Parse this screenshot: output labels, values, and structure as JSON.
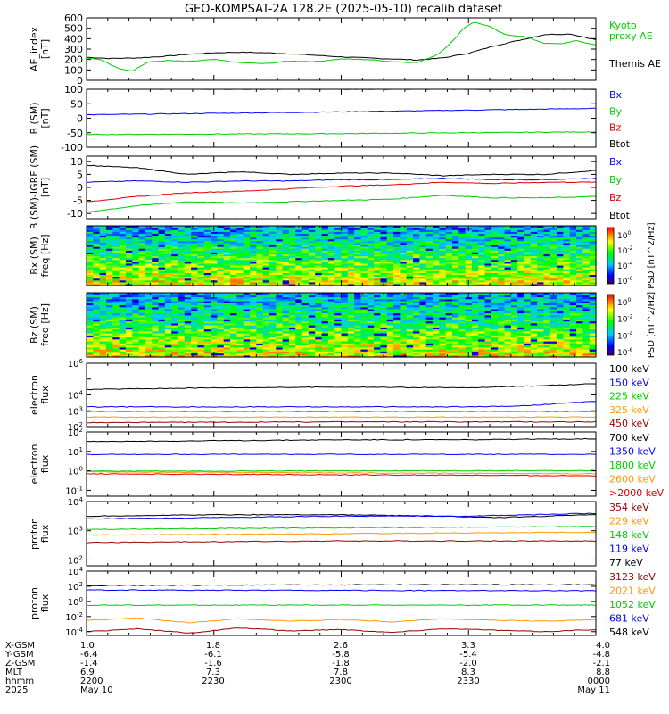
{
  "title": "GEO-KOMPSAT-2A 128.2E (2025-05-10) recalib dataset",
  "colors": {
    "black": "#000000",
    "blue": "#0000ff",
    "green": "#00cc00",
    "red": "#dd0000",
    "orange": "#ff9900",
    "darkred": "#990000",
    "lime": "#00dd00"
  },
  "x_axis": {
    "rows": [
      {
        "label": "X-GSM",
        "values": [
          "1.0",
          "1.8",
          "2.6",
          "3.3",
          "4.0"
        ]
      },
      {
        "label": "Y-GSM",
        "values": [
          "-6.4",
          "-6.1",
          "-5.8",
          "-5.4",
          "-4.8"
        ]
      },
      {
        "label": "Z-GSM",
        "values": [
          "-1.4",
          "-1.6",
          "-1.8",
          "-2.0",
          "-2.1"
        ]
      },
      {
        "label": "MLT",
        "values": [
          "6.9",
          "7.3",
          "7.8",
          "8.3",
          "8.8"
        ]
      },
      {
        "label": "hhmm",
        "values": [
          "2200",
          "2230",
          "2300",
          "2330",
          "0000"
        ]
      },
      {
        "label": "2025",
        "values": [
          "May 10",
          "",
          "",
          "",
          "May 11"
        ]
      }
    ]
  },
  "chart_data": [
    {
      "type": "line",
      "ylabel": [
        "AE_index",
        "[nT]"
      ],
      "ylim": [
        0,
        600
      ],
      "yticks": [
        "0",
        "100",
        "200",
        "300",
        "400",
        "500",
        "600"
      ],
      "legend": [
        {
          "text": "Kyoto",
          "color": "#00cc00"
        },
        {
          "text": "proxy AE",
          "color": "#00cc00"
        },
        {
          "text": "Themis AE",
          "color": "#000000"
        }
      ],
      "series": [
        {
          "name": "Themis AE",
          "color": "#000000",
          "x": [
            0,
            0.05,
            0.1,
            0.15,
            0.2,
            0.25,
            0.3,
            0.35,
            0.4,
            0.45,
            0.5,
            0.55,
            0.6,
            0.65,
            0.7,
            0.75,
            0.8,
            0.85,
            0.9,
            0.95,
            1
          ],
          "y": [
            220,
            210,
            215,
            230,
            250,
            265,
            270,
            265,
            255,
            240,
            225,
            215,
            205,
            195,
            215,
            260,
            330,
            385,
            440,
            445,
            390
          ]
        },
        {
          "name": "Kyoto proxy AE",
          "color": "#00cc00",
          "x": [
            0,
            0.03,
            0.06,
            0.09,
            0.12,
            0.16,
            0.2,
            0.25,
            0.3,
            0.35,
            0.4,
            0.45,
            0.5,
            0.55,
            0.6,
            0.65,
            0.69,
            0.72,
            0.74,
            0.76,
            0.79,
            0.82,
            0.86,
            0.9,
            0.93,
            0.96,
            1
          ],
          "y": [
            215,
            195,
            120,
            90,
            175,
            190,
            180,
            200,
            170,
            160,
            185,
            180,
            205,
            200,
            180,
            170,
            250,
            380,
            500,
            560,
            520,
            440,
            420,
            355,
            350,
            380,
            340
          ]
        }
      ]
    },
    {
      "type": "line",
      "ylabel": [
        "B (SM)",
        "[nT]"
      ],
      "ylim": [
        -100,
        100
      ],
      "yticks": [
        "-100",
        "-50",
        "0",
        "50",
        "100"
      ],
      "legend": [
        {
          "text": "Bx",
          "color": "#0000ff"
        },
        {
          "text": "By",
          "color": "#00cc00"
        },
        {
          "text": "Bz",
          "color": "#dd0000"
        },
        {
          "text": "Btot",
          "color": "#000000"
        }
      ],
      "series": [
        {
          "name": "Btot",
          "color": "#000000",
          "x": [
            0,
            0.5,
            1
          ],
          "y": [
            106,
            104,
            103
          ]
        },
        {
          "name": "Bz",
          "color": "#dd0000",
          "x": [
            0,
            0.5,
            1
          ],
          "y": [
            101,
            100,
            100
          ]
        },
        {
          "name": "Bx",
          "color": "#0000ff",
          "x": [
            0,
            0.5,
            1
          ],
          "y": [
            12,
            22,
            34
          ]
        },
        {
          "name": "By",
          "color": "#00cc00",
          "x": [
            0,
            0.5,
            1
          ],
          "y": [
            -56,
            -53,
            -47
          ]
        }
      ]
    },
    {
      "type": "line",
      "ylabel": [
        "B (SM)-IGRF (SM)",
        "[nT]"
      ],
      "ylim": [
        -12,
        12
      ],
      "yticks": [
        "-10",
        "-5",
        "0",
        "5",
        "10"
      ],
      "legend": [
        {
          "text": "Bx",
          "color": "#0000ff"
        },
        {
          "text": "By",
          "color": "#00cc00"
        },
        {
          "text": "Bz",
          "color": "#dd0000"
        },
        {
          "text": "Btot",
          "color": "#000000"
        }
      ],
      "series": [
        {
          "name": "Btot",
          "color": "#000000",
          "x": [
            0,
            0.1,
            0.2,
            0.3,
            0.4,
            0.5,
            0.6,
            0.7,
            0.8,
            0.9,
            1
          ],
          "y": [
            8.5,
            7.5,
            5,
            6,
            5,
            5.5,
            5.5,
            4.5,
            5,
            5,
            6.5
          ]
        },
        {
          "name": "Bx",
          "color": "#0000ff",
          "x": [
            0,
            0.1,
            0.2,
            0.3,
            0.4,
            0.5,
            0.6,
            0.7,
            0.8,
            0.9,
            1
          ],
          "y": [
            2,
            2.5,
            2,
            2.5,
            2.5,
            3,
            3,
            3.5,
            3,
            3,
            3.5
          ]
        },
        {
          "name": "Bz",
          "color": "#dd0000",
          "x": [
            0,
            0.1,
            0.2,
            0.3,
            0.4,
            0.5,
            0.6,
            0.7,
            0.8,
            0.9,
            1
          ],
          "y": [
            -5.5,
            -3.5,
            -2,
            -1.5,
            -0.5,
            0.5,
            1,
            2,
            1.5,
            2,
            2
          ]
        },
        {
          "name": "By",
          "color": "#00cc00",
          "x": [
            0,
            0.1,
            0.2,
            0.3,
            0.4,
            0.5,
            0.6,
            0.7,
            0.8,
            0.9,
            1
          ],
          "y": [
            -9.5,
            -7,
            -5.5,
            -6,
            -5.5,
            -5,
            -4.5,
            -3,
            -4,
            -4,
            -3.5
          ]
        }
      ]
    },
    {
      "type": "heatmap",
      "ylabel": [
        "Bx (SM)",
        "freq [Hz]"
      ],
      "ylim": [
        0,
        0.5
      ],
      "yticks": [
        "0.1",
        "0.2",
        "0.3",
        "0.4"
      ],
      "colorbar": {
        "label": "PSD [nT^2/Hz]",
        "ticks": [
          "10^0",
          "10^-2",
          "10^-4",
          "10^-6"
        ]
      }
    },
    {
      "type": "heatmap",
      "ylabel": [
        "Bz (SM)",
        "freq [Hz]"
      ],
      "ylim": [
        0,
        0.5
      ],
      "yticks": [
        "0.1",
        "0.2",
        "0.3",
        "0.4"
      ],
      "colorbar": {
        "label": "PSD [nT^2/Hz]",
        "ticks": [
          "10^0",
          "10^-2",
          "10^-4",
          "10^-6"
        ]
      }
    },
    {
      "type": "line",
      "log": true,
      "ylabel": [
        "electron",
        "flux"
      ],
      "ylim_exp": [
        2,
        6
      ],
      "yticks_exp": [
        2,
        3,
        4,
        5,
        6
      ],
      "yticks_show": [
        2,
        3,
        4,
        6
      ],
      "legend": [
        {
          "text": "100 keV",
          "color": "#000000"
        },
        {
          "text": "150 keV",
          "color": "#0000ff"
        },
        {
          "text": "225 keV",
          "color": "#00cc00"
        },
        {
          "text": "325 keV",
          "color": "#ff9900"
        },
        {
          "text": "450 keV",
          "color": "#990000"
        }
      ],
      "series": [
        {
          "name": "100 keV",
          "color": "#000000",
          "x": [
            0,
            0.25,
            0.5,
            0.75,
            1
          ],
          "y_exp": [
            4.35,
            4.45,
            4.5,
            4.45,
            4.7
          ]
        },
        {
          "name": "150 keV",
          "color": "#0000ff",
          "x": [
            0,
            0.25,
            0.5,
            0.75,
            0.85,
            0.9,
            0.95,
            1
          ],
          "y_exp": [
            3.25,
            3.25,
            3.25,
            3.25,
            3.3,
            3.4,
            3.5,
            3.6
          ]
        },
        {
          "name": "225 keV",
          "color": "#00cc00",
          "x": [
            0,
            0.5,
            1
          ],
          "y_exp": [
            2.95,
            2.95,
            2.95
          ]
        },
        {
          "name": "325 keV",
          "color": "#ff9900",
          "x": [
            0,
            0.5,
            1
          ],
          "y_exp": [
            2.6,
            2.6,
            2.6
          ]
        },
        {
          "name": "450 keV",
          "color": "#990000",
          "x": [
            0,
            0.5,
            1
          ],
          "y_exp": [
            2.25,
            2.3,
            2.3
          ]
        }
      ]
    },
    {
      "type": "line",
      "log": true,
      "ylabel": [
        "electron",
        "flux"
      ],
      "ylim_exp": [
        -1.3,
        2
      ],
      "yticks_exp": [
        -1,
        0,
        1,
        2
      ],
      "yticks_show": [
        -1,
        0,
        1,
        2
      ],
      "legend": [
        {
          "text": "700 keV",
          "color": "#000000"
        },
        {
          "text": "1350 keV",
          "color": "#0000ff"
        },
        {
          "text": "1800 keV",
          "color": "#00cc00"
        },
        {
          "text": "2600 keV",
          "color": "#ff9900"
        },
        {
          "text": ">2000 keV",
          "color": "#dd0000"
        }
      ],
      "series": [
        {
          "name": "700 keV",
          "color": "#000000",
          "x": [
            0,
            0.25,
            0.5,
            0.75,
            1
          ],
          "y_exp": [
            1.5,
            1.55,
            1.6,
            1.6,
            1.65
          ]
        },
        {
          "name": "1350 keV",
          "color": "#0000ff",
          "x": [
            0,
            0.5,
            1
          ],
          "y_exp": [
            0.85,
            0.85,
            0.85
          ]
        },
        {
          "name": "1800 keV",
          "color": "#00cc00",
          "x": [
            0,
            0.5,
            1
          ],
          "y_exp": [
            -0.02,
            0,
            0.02
          ]
        },
        {
          "name": "2600 keV",
          "color": "#ff9900",
          "x": [
            0,
            0.5,
            1
          ],
          "y_exp": [
            -0.05,
            -0.1,
            -0.15
          ]
        },
        {
          "name": ">2000 keV",
          "color": "#dd0000",
          "x": [
            0,
            0.5,
            1
          ],
          "y_exp": [
            -0.15,
            -0.2,
            -0.25
          ]
        }
      ]
    },
    {
      "type": "line",
      "log": true,
      "ylabel": [
        "proton",
        "flux"
      ],
      "ylim_exp": [
        1.8,
        4
      ],
      "yticks_exp": [
        2,
        3,
        4
      ],
      "yticks_show": [
        2,
        3,
        4
      ],
      "legend": [
        {
          "text": "354 keV",
          "color": "#990000"
        },
        {
          "text": "229 keV",
          "color": "#ff9900"
        },
        {
          "text": "148 keV",
          "color": "#00cc00"
        },
        {
          "text": "119 keV",
          "color": "#0000ff"
        },
        {
          "text": "77 keV",
          "color": "#000000"
        }
      ],
      "series": [
        {
          "name": "77 keV",
          "color": "#000000",
          "x": [
            0,
            0.25,
            0.5,
            0.7,
            0.8,
            0.9,
            1
          ],
          "y_exp": [
            3.5,
            3.55,
            3.55,
            3.5,
            3.45,
            3.5,
            3.55
          ]
        },
        {
          "name": "119 keV",
          "color": "#0000ff",
          "x": [
            0,
            0.25,
            0.5,
            0.75,
            1
          ],
          "y_exp": [
            3.4,
            3.45,
            3.5,
            3.5,
            3.6
          ]
        },
        {
          "name": "148 keV",
          "color": "#00cc00",
          "x": [
            0,
            0.5,
            1
          ],
          "y_exp": [
            3.05,
            3.1,
            3.15
          ]
        },
        {
          "name": "229 keV",
          "color": "#ff9900",
          "x": [
            0,
            0.5,
            1
          ],
          "y_exp": [
            2.85,
            2.9,
            2.95
          ]
        },
        {
          "name": "354 keV",
          "color": "#990000",
          "x": [
            0,
            0.5,
            1
          ],
          "y_exp": [
            2.6,
            2.65,
            2.65
          ]
        }
      ]
    },
    {
      "type": "line",
      "log": true,
      "ylabel": [
        "proton",
        "flux"
      ],
      "ylim_exp": [
        -4.5,
        4
      ],
      "yticks_exp": [
        -4,
        -2,
        0,
        2,
        4
      ],
      "yticks_show": [
        -4,
        -2,
        0,
        2,
        4
      ],
      "legend": [
        {
          "text": "3123 keV",
          "color": "#990000"
        },
        {
          "text": "2021 keV",
          "color": "#ff9900"
        },
        {
          "text": "1052 keV",
          "color": "#00cc00"
        },
        {
          "text": "681 keV",
          "color": "#0000ff"
        },
        {
          "text": "548 keV",
          "color": "#000000"
        }
      ],
      "series": [
        {
          "name": "548 keV",
          "color": "#000000",
          "x": [
            0,
            0.5,
            1
          ],
          "y_exp": [
            2.1,
            2.2,
            2.2
          ]
        },
        {
          "name": "681 keV",
          "color": "#0000ff",
          "x": [
            0,
            0.5,
            1
          ],
          "y_exp": [
            1.5,
            1.45,
            1.4
          ]
        },
        {
          "name": "1052 keV",
          "color": "#00cc00",
          "x": [
            0,
            0.5,
            1
          ],
          "y_exp": [
            -0.5,
            -0.5,
            -0.5
          ]
        },
        {
          "name": "2021 keV",
          "color": "#ff9900",
          "x": [
            0,
            0.1,
            0.2,
            0.3,
            0.4,
            0.5,
            0.6,
            0.7,
            0.8,
            0.9,
            1
          ],
          "y_exp": [
            -2.5,
            -2.2,
            -2.8,
            -2.3,
            -2.6,
            -2.4,
            -2.7,
            -2.3,
            -2.5,
            -2.6,
            -2.4
          ]
        },
        {
          "name": "3123 keV",
          "color": "#990000",
          "x": [
            0,
            0.1,
            0.2,
            0.3,
            0.4,
            0.5,
            0.6,
            0.7,
            0.8,
            0.9,
            1
          ],
          "y_exp": [
            -4,
            -3.6,
            -4.2,
            -3.5,
            -3.9,
            -3.7,
            -4.1,
            -3.6,
            -3.8,
            -4,
            -3.7
          ]
        }
      ]
    }
  ]
}
